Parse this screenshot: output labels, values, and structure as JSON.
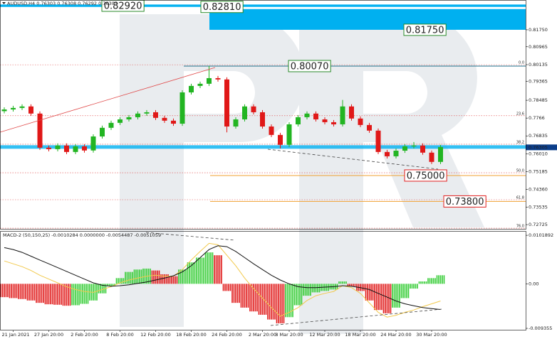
{
  "chart_data": [
    {
      "type": "candlestick",
      "title": "AUDUSD,H4  0.76303 0.76308 0.76292 0.76305",
      "categories": [
        null,
        "21 Jan 2021",
        null,
        null,
        null,
        "27 Jan 20:00",
        null,
        null,
        null,
        "2 Feb 20:00",
        null,
        null,
        null,
        "8 Feb 20:00",
        null,
        null,
        null,
        "12 Feb 20:00",
        null,
        null,
        null,
        "18 Feb 20:00",
        null,
        null,
        null,
        "24 Feb 20:00",
        null,
        null,
        null,
        "2 Mar 20:00",
        null,
        null,
        "8 Mar 20:00",
        null,
        null,
        null,
        "12 Mar 20:00",
        null,
        null,
        null,
        "18 Mar 20:00",
        null,
        null,
        null,
        "24 Mar 20:00",
        null,
        null,
        null,
        "30 Mar 20:00",
        null
      ],
      "open": [
        0.7798,
        0.7806,
        0.7813,
        0.782,
        0.7787,
        0.7629,
        0.7622,
        0.7639,
        0.7609,
        0.7635,
        0.7616,
        0.7681,
        0.7721,
        0.7744,
        0.776,
        0.777,
        0.7787,
        0.7793,
        0.7767,
        0.7754,
        0.774,
        0.7885,
        0.7915,
        0.7925,
        0.7951,
        0.7945,
        0.7727,
        0.776,
        0.782,
        0.7793,
        0.7727,
        0.7688,
        0.7642,
        0.7737,
        0.777,
        0.7787,
        0.776,
        0.7747,
        0.7737,
        0.782,
        0.7764,
        0.7734,
        0.7708,
        0.7609,
        0.7589,
        0.7615,
        0.7635,
        0.7639,
        0.7606,
        0.7563
      ],
      "high": [
        0.7816,
        0.7823,
        0.783,
        0.783,
        0.7797,
        0.7639,
        0.7649,
        0.7649,
        0.7645,
        0.7645,
        0.7691,
        0.7731,
        0.7754,
        0.777,
        0.778,
        0.7797,
        0.7803,
        0.7803,
        0.7777,
        0.7764,
        0.7895,
        0.7925,
        0.7935,
        0.8007,
        0.7961,
        0.7955,
        0.777,
        0.783,
        0.783,
        0.7803,
        0.7737,
        0.7698,
        0.7747,
        0.778,
        0.7797,
        0.7797,
        0.777,
        0.7757,
        0.785,
        0.783,
        0.7774,
        0.7744,
        0.7718,
        0.7619,
        0.7625,
        0.7645,
        0.7655,
        0.7649,
        0.7616,
        0.7642
      ],
      "low": [
        0.7788,
        0.7796,
        0.7803,
        0.7777,
        0.7619,
        0.7612,
        0.7612,
        0.7599,
        0.7599,
        0.7606,
        0.7606,
        0.7671,
        0.7711,
        0.7734,
        0.775,
        0.776,
        0.7777,
        0.7757,
        0.7744,
        0.773,
        0.773,
        0.7875,
        0.7905,
        0.7915,
        0.7935,
        0.77,
        0.7717,
        0.775,
        0.7783,
        0.7717,
        0.7678,
        0.7625,
        0.7632,
        0.7727,
        0.776,
        0.775,
        0.7737,
        0.7727,
        0.7727,
        0.7754,
        0.7724,
        0.7698,
        0.7599,
        0.7579,
        0.7579,
        0.7605,
        0.7625,
        0.7596,
        0.7553,
        0.7553
      ],
      "close": [
        0.7806,
        0.7813,
        0.782,
        0.7787,
        0.7629,
        0.7622,
        0.7639,
        0.7609,
        0.7635,
        0.7616,
        0.7681,
        0.7721,
        0.7744,
        0.776,
        0.777,
        0.7787,
        0.7793,
        0.7767,
        0.7754,
        0.774,
        0.7885,
        0.7915,
        0.7925,
        0.7951,
        0.7945,
        0.7727,
        0.776,
        0.782,
        0.7793,
        0.7727,
        0.7688,
        0.7642,
        0.7737,
        0.777,
        0.7787,
        0.776,
        0.7747,
        0.7737,
        0.782,
        0.7764,
        0.7734,
        0.7708,
        0.7609,
        0.7589,
        0.7615,
        0.7635,
        0.7639,
        0.7606,
        0.7563,
        0.7632
      ],
      "up_color": "#22b522",
      "down_color": "#e01818",
      "ylim": [
        0.7253,
        0.8313
      ],
      "yticks": [
        {
          "value": 0.8175,
          "label": "0.81750"
        },
        {
          "value": 0.80965,
          "label": "0.80965"
        },
        {
          "value": 0.80135,
          "label": "0.80135"
        },
        {
          "value": 0.79365,
          "label": "0.79365"
        },
        {
          "value": 0.78485,
          "label": "0.78485"
        },
        0.7766,
        0.76835,
        {
          "value": 0.7601,
          "label": "0.76010"
        },
        0.75185,
        {
          "value": 0.7436,
          "label": "0.74360"
        },
        0.73535,
        0.72725
      ],
      "last_price": {
        "value": 0.76305,
        "label": "0.76305"
      },
      "zone_color": "#00b0f0",
      "annotations": [
        {
          "value": 0.8292,
          "label": "0.82920",
          "color": "#2a8a2a"
        },
        {
          "value": 0.8281,
          "label": "0.82810",
          "color": "#2a8a2a"
        },
        {
          "value": 0.8175,
          "label": "0.81750",
          "color": "#2a8a2a"
        },
        {
          "value": 0.8007,
          "label": "0.80070",
          "color": "#2a8a2a"
        },
        {
          "value": 0.75,
          "label": "0.75000",
          "color": "#e02020"
        },
        {
          "value": 0.738,
          "label": "0.73800",
          "color": "#e02020"
        }
      ],
      "fib_color": "#e04848",
      "fib_levels": [
        {
          "value": 0.8013,
          "label": "0.0"
        },
        {
          "value": 0.7777,
          "label": "23.6"
        },
        {
          "value": 0.7645,
          "label": "38.2"
        },
        {
          "value": 0.7513,
          "label": "50.0"
        },
        {
          "value": 0.7388,
          "label": "61.8"
        },
        {
          "value": 0.7256,
          "label": "76.0"
        }
      ]
    },
    {
      "type": "macd",
      "title": "MACD-2 (50,150,25) -0.0010284 0.0000000 -0.0054487 -0.0051059",
      "histogram": [
        -0.0028,
        -0.003,
        -0.0032,
        -0.0035,
        -0.004,
        -0.0043,
        -0.0044,
        -0.0046,
        -0.0045,
        -0.0042,
        -0.0035,
        -0.002,
        -0.0005,
        0.0012,
        0.0025,
        0.003,
        0.0032,
        0.0028,
        0.002,
        0.0016,
        0.003,
        0.0045,
        0.0055,
        0.0066,
        0.006,
        -0.0015,
        -0.004,
        -0.005,
        -0.0058,
        -0.0065,
        -0.0075,
        -0.0083,
        -0.007,
        -0.0045,
        -0.0025,
        -0.0018,
        -0.0015,
        -0.0012,
        0.0005,
        -0.0005,
        -0.0015,
        -0.0035,
        -0.0055,
        -0.0062,
        -0.005,
        -0.003,
        -0.001,
        0.0005,
        0.0012,
        0.0018
      ],
      "main": [
        0.0048,
        0.0042,
        0.0036,
        0.0028,
        0.0018,
        0.001,
        0.0002,
        -0.0006,
        -0.0012,
        -0.0016,
        -0.0018,
        -0.0012,
        -0.0006,
        0.0002,
        0.0008,
        0.0012,
        0.0016,
        0.0018,
        0.0016,
        0.0016,
        0.003,
        0.005,
        0.0068,
        0.0085,
        0.0082,
        0.006,
        0.0038,
        0.0012,
        -0.001,
        -0.003,
        -0.005,
        -0.0068,
        -0.006,
        -0.005,
        -0.0035,
        -0.0025,
        -0.002,
        -0.0016,
        -0.0004,
        -0.0008,
        -0.002,
        -0.004,
        -0.006,
        -0.007,
        -0.0066,
        -0.006,
        -0.0055,
        -0.0048,
        -0.0042,
        -0.0036
      ],
      "signal": [
        0.0076,
        0.0072,
        0.0066,
        0.0058,
        0.005,
        0.0042,
        0.0034,
        0.0026,
        0.0018,
        0.001,
        0.0002,
        -0.0003,
        -0.0005,
        -0.0004,
        -0.0002,
        0.0001,
        0.0004,
        0.0008,
        0.0012,
        0.0017,
        0.0025,
        0.0038,
        0.0055,
        0.0072,
        0.008,
        0.0078,
        0.0068,
        0.0055,
        0.0042,
        0.003,
        0.0018,
        0.0008,
        0.0,
        -0.0006,
        -0.0008,
        -0.0008,
        -0.0007,
        -0.0006,
        -0.0004,
        -0.0005,
        -0.0008,
        -0.0012,
        -0.002,
        -0.0028,
        -0.0036,
        -0.0042,
        -0.0046,
        -0.005,
        -0.0052,
        -0.0054
      ],
      "up_color": "#33cc33",
      "down_color": "#e01818",
      "main_color": "#f2c94c",
      "signal_color": "#111111",
      "ylim": [
        -0.0098,
        0.0111
      ],
      "yticks": [
        0.0101892,
        {
          "value": 0,
          "label": "0.00"
        },
        -0.009355
      ]
    }
  ]
}
